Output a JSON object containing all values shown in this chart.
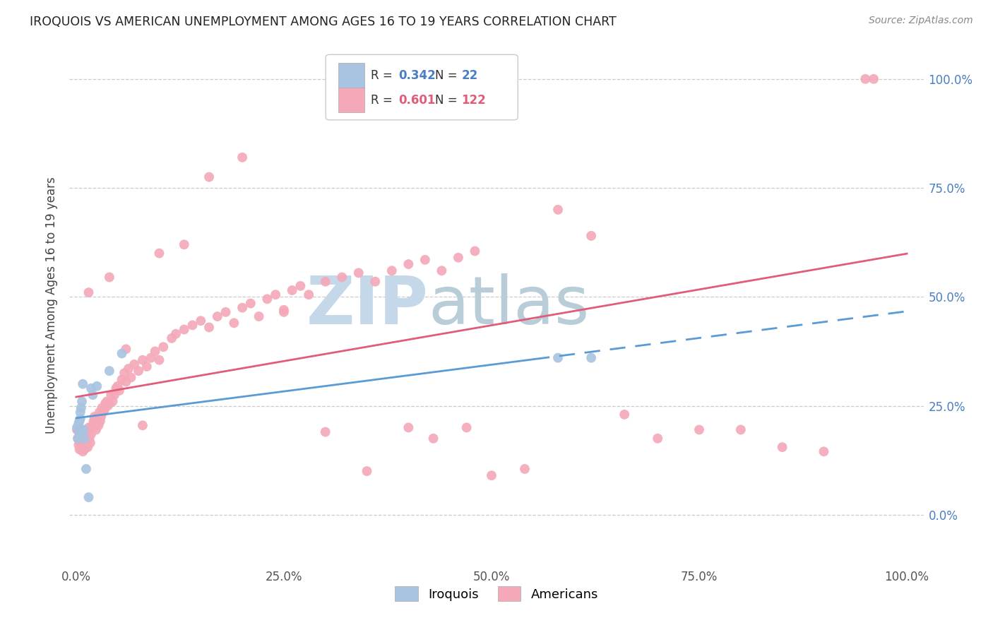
{
  "title": "IROQUOIS VS AMERICAN UNEMPLOYMENT AMONG AGES 16 TO 19 YEARS CORRELATION CHART",
  "source": "Source: ZipAtlas.com",
  "ylabel": "Unemployment Among Ages 16 to 19 years",
  "legend_iroquois_label": "Iroquois",
  "legend_americans_label": "Americans",
  "R_iroquois": "0.342",
  "N_iroquois": "22",
  "R_americans": "0.601",
  "N_americans": "122",
  "iroquois_color": "#a8c4e0",
  "americans_color": "#f4a8b8",
  "iroquois_line_color": "#5b9bd5",
  "americans_line_color": "#e05c78",
  "background_color": "#ffffff",
  "xlim": [
    -0.008,
    1.02
  ],
  "ylim": [
    -0.12,
    1.08
  ],
  "xtick_vals": [
    0.0,
    0.25,
    0.5,
    0.75,
    1.0
  ],
  "xtick_labels": [
    "0.0%",
    "25.0%",
    "50.0%",
    "75.0%",
    "100.0%"
  ],
  "ytick_vals": [
    0.0,
    0.25,
    0.5,
    0.75,
    1.0
  ],
  "ytick_labels": [
    "0.0%",
    "25.0%",
    "50.0%",
    "75.0%",
    "100.0%"
  ],
  "iroquois_x": [
    0.001,
    0.002,
    0.003,
    0.003,
    0.004,
    0.004,
    0.005,
    0.005,
    0.006,
    0.007,
    0.008,
    0.009,
    0.01,
    0.012,
    0.015,
    0.018,
    0.02,
    0.025,
    0.04,
    0.055,
    0.58,
    0.62
  ],
  "iroquois_y": [
    0.2,
    0.175,
    0.195,
    0.21,
    0.215,
    0.185,
    0.22,
    0.235,
    0.245,
    0.26,
    0.3,
    0.195,
    0.175,
    0.105,
    0.04,
    0.29,
    0.275,
    0.295,
    0.33,
    0.37,
    0.36,
    0.36
  ],
  "americans_x": [
    0.001,
    0.002,
    0.002,
    0.003,
    0.003,
    0.004,
    0.004,
    0.005,
    0.005,
    0.006,
    0.006,
    0.007,
    0.007,
    0.008,
    0.008,
    0.009,
    0.009,
    0.01,
    0.01,
    0.011,
    0.012,
    0.012,
    0.013,
    0.013,
    0.014,
    0.015,
    0.015,
    0.016,
    0.017,
    0.018,
    0.019,
    0.02,
    0.021,
    0.022,
    0.023,
    0.024,
    0.025,
    0.026,
    0.027,
    0.028,
    0.029,
    0.03,
    0.031,
    0.032,
    0.034,
    0.035,
    0.037,
    0.038,
    0.04,
    0.042,
    0.044,
    0.046,
    0.048,
    0.05,
    0.052,
    0.055,
    0.058,
    0.06,
    0.063,
    0.066,
    0.07,
    0.075,
    0.08,
    0.085,
    0.09,
    0.095,
    0.1,
    0.105,
    0.115,
    0.12,
    0.13,
    0.14,
    0.15,
    0.16,
    0.17,
    0.18,
    0.19,
    0.2,
    0.21,
    0.22,
    0.23,
    0.24,
    0.25,
    0.26,
    0.27,
    0.28,
    0.3,
    0.32,
    0.34,
    0.36,
    0.38,
    0.4,
    0.42,
    0.44,
    0.46,
    0.48,
    0.015,
    0.04,
    0.06,
    0.08,
    0.1,
    0.13,
    0.16,
    0.2,
    0.25,
    0.3,
    0.35,
    0.4,
    0.43,
    0.47,
    0.5,
    0.54,
    0.58,
    0.62,
    0.66,
    0.7,
    0.75,
    0.8,
    0.85,
    0.9,
    0.95,
    0.96
  ],
  "americans_y": [
    0.195,
    0.175,
    0.195,
    0.16,
    0.175,
    0.15,
    0.185,
    0.195,
    0.165,
    0.18,
    0.175,
    0.15,
    0.165,
    0.145,
    0.175,
    0.155,
    0.17,
    0.15,
    0.18,
    0.17,
    0.16,
    0.175,
    0.165,
    0.18,
    0.155,
    0.18,
    0.2,
    0.175,
    0.165,
    0.185,
    0.2,
    0.205,
    0.215,
    0.225,
    0.205,
    0.195,
    0.215,
    0.225,
    0.205,
    0.235,
    0.215,
    0.225,
    0.245,
    0.235,
    0.24,
    0.255,
    0.26,
    0.25,
    0.255,
    0.275,
    0.26,
    0.275,
    0.29,
    0.295,
    0.285,
    0.31,
    0.325,
    0.305,
    0.335,
    0.315,
    0.345,
    0.33,
    0.355,
    0.34,
    0.36,
    0.375,
    0.355,
    0.385,
    0.405,
    0.415,
    0.425,
    0.435,
    0.445,
    0.43,
    0.455,
    0.465,
    0.44,
    0.475,
    0.485,
    0.455,
    0.495,
    0.505,
    0.465,
    0.515,
    0.525,
    0.505,
    0.535,
    0.545,
    0.555,
    0.535,
    0.56,
    0.575,
    0.585,
    0.56,
    0.59,
    0.605,
    0.51,
    0.545,
    0.38,
    0.205,
    0.6,
    0.62,
    0.775,
    0.82,
    0.47,
    0.19,
    0.1,
    0.2,
    0.175,
    0.2,
    0.09,
    0.105,
    0.7,
    0.64,
    0.23,
    0.175,
    0.195,
    0.195,
    0.155,
    0.145,
    1.0,
    1.0
  ]
}
